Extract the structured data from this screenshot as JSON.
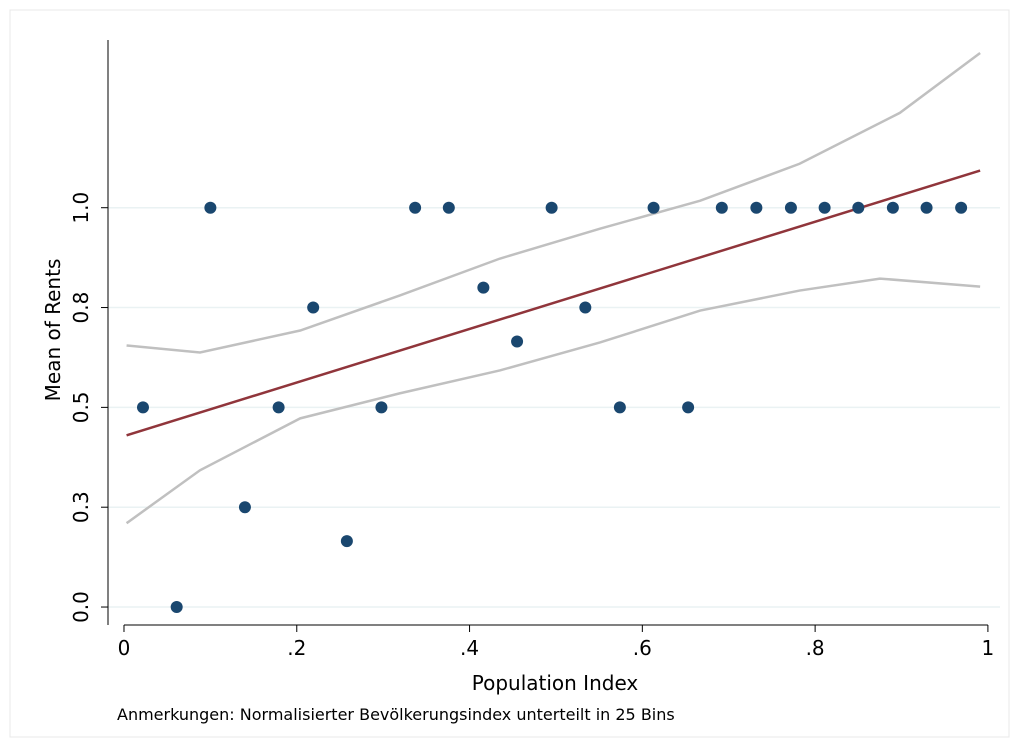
{
  "chart_data": {
    "type": "scatter",
    "x_label": "Population Index",
    "y_label": "Mean of Rents",
    "note": "Anmerkungen: Normalisierter Bevölkerungsindex unterteilt in 25 Bins",
    "xlim": [
      -0.0185,
      1.014
    ],
    "ylim": [
      -0.045,
      1.42
    ],
    "xticks": [
      0,
      {
        "value": 0.2,
        "label": ".2"
      },
      {
        "value": 0.4,
        "label": ".4"
      },
      {
        "value": 0.6,
        "label": ".6"
      },
      {
        "value": 0.8,
        "label": ".8"
      },
      1
    ],
    "yticks": [
      {
        "value": 0,
        "label": "0.0"
      },
      {
        "value": 0.25,
        "label": "0.3"
      },
      {
        "value": 0.5,
        "label": "0.5"
      },
      {
        "value": 0.75,
        "label": "0.8"
      },
      {
        "value": 1,
        "label": "1.0"
      }
    ],
    "grid": true,
    "series": [
      {
        "type": "scatter",
        "color": "#1a476f",
        "x": [
          0.022,
          0.061,
          0.1,
          0.14,
          0.179,
          0.219,
          0.258,
          0.298,
          0.337,
          0.376,
          0.416,
          0.455,
          0.495,
          0.534,
          0.574,
          0.613,
          0.653,
          0.692,
          0.732,
          0.772,
          0.811,
          0.85,
          0.89,
          0.929,
          0.969
        ],
        "y": [
          0.5,
          0,
          1,
          0.25,
          0.5,
          0.75,
          0.165,
          0.5,
          1,
          1,
          0.8,
          0.665,
          1,
          0.75,
          0.5,
          1,
          0.5,
          1,
          1,
          1,
          1,
          1,
          1,
          1,
          1
        ]
      },
      {
        "type": "line",
        "color": "#90353b",
        "x": [
          0.003,
          0.991
        ],
        "y": [
          0.43,
          1.093
        ]
      },
      {
        "type": "line",
        "color": "#c0c0c0",
        "x": [
          0.003,
          0.088,
          0.204,
          0.319,
          0.435,
          0.551,
          0.667,
          0.782,
          0.898,
          0.991
        ],
        "y": [
          0.655,
          0.6375,
          0.6925,
          0.78,
          0.8725,
          0.9475,
          1.0175,
          1.11,
          1.2375,
          1.3875
        ]
      },
      {
        "type": "line",
        "color": "#c0c0c0",
        "x": [
          0.003,
          0.088,
          0.204,
          0.319,
          0.435,
          0.551,
          0.667,
          0.782,
          0.875,
          0.991
        ],
        "y": [
          0.21,
          0.3425,
          0.4725,
          0.535,
          0.5925,
          0.6625,
          0.7425,
          0.7925,
          0.8225,
          0.8025
        ]
      }
    ]
  }
}
